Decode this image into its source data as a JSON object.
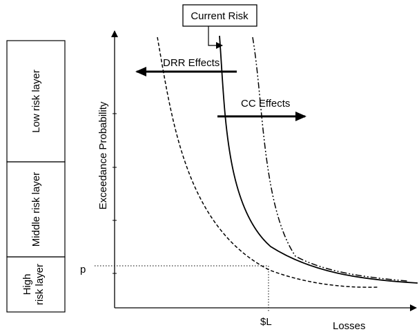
{
  "layers": [
    {
      "label_lines": [
        "Low risk layer"
      ]
    },
    {
      "label_lines": [
        "Middle risk layer"
      ]
    },
    {
      "label_lines": [
        "High",
        "risk layer"
      ]
    }
  ],
  "axes": {
    "y_label": "Exceedance Probability",
    "x_label": "Losses",
    "p_label": "p",
    "loss_label": "$L"
  },
  "annotations": {
    "current_risk": "Current Risk",
    "drr_effects": "DRR Effects",
    "cc_effects": "CC Effects"
  },
  "curves": [
    {
      "name": "current-risk-curve",
      "style": "solid"
    },
    {
      "name": "drr-curve",
      "style": "dashed"
    },
    {
      "name": "cc-curve",
      "style": "dash-dot-dot"
    }
  ]
}
